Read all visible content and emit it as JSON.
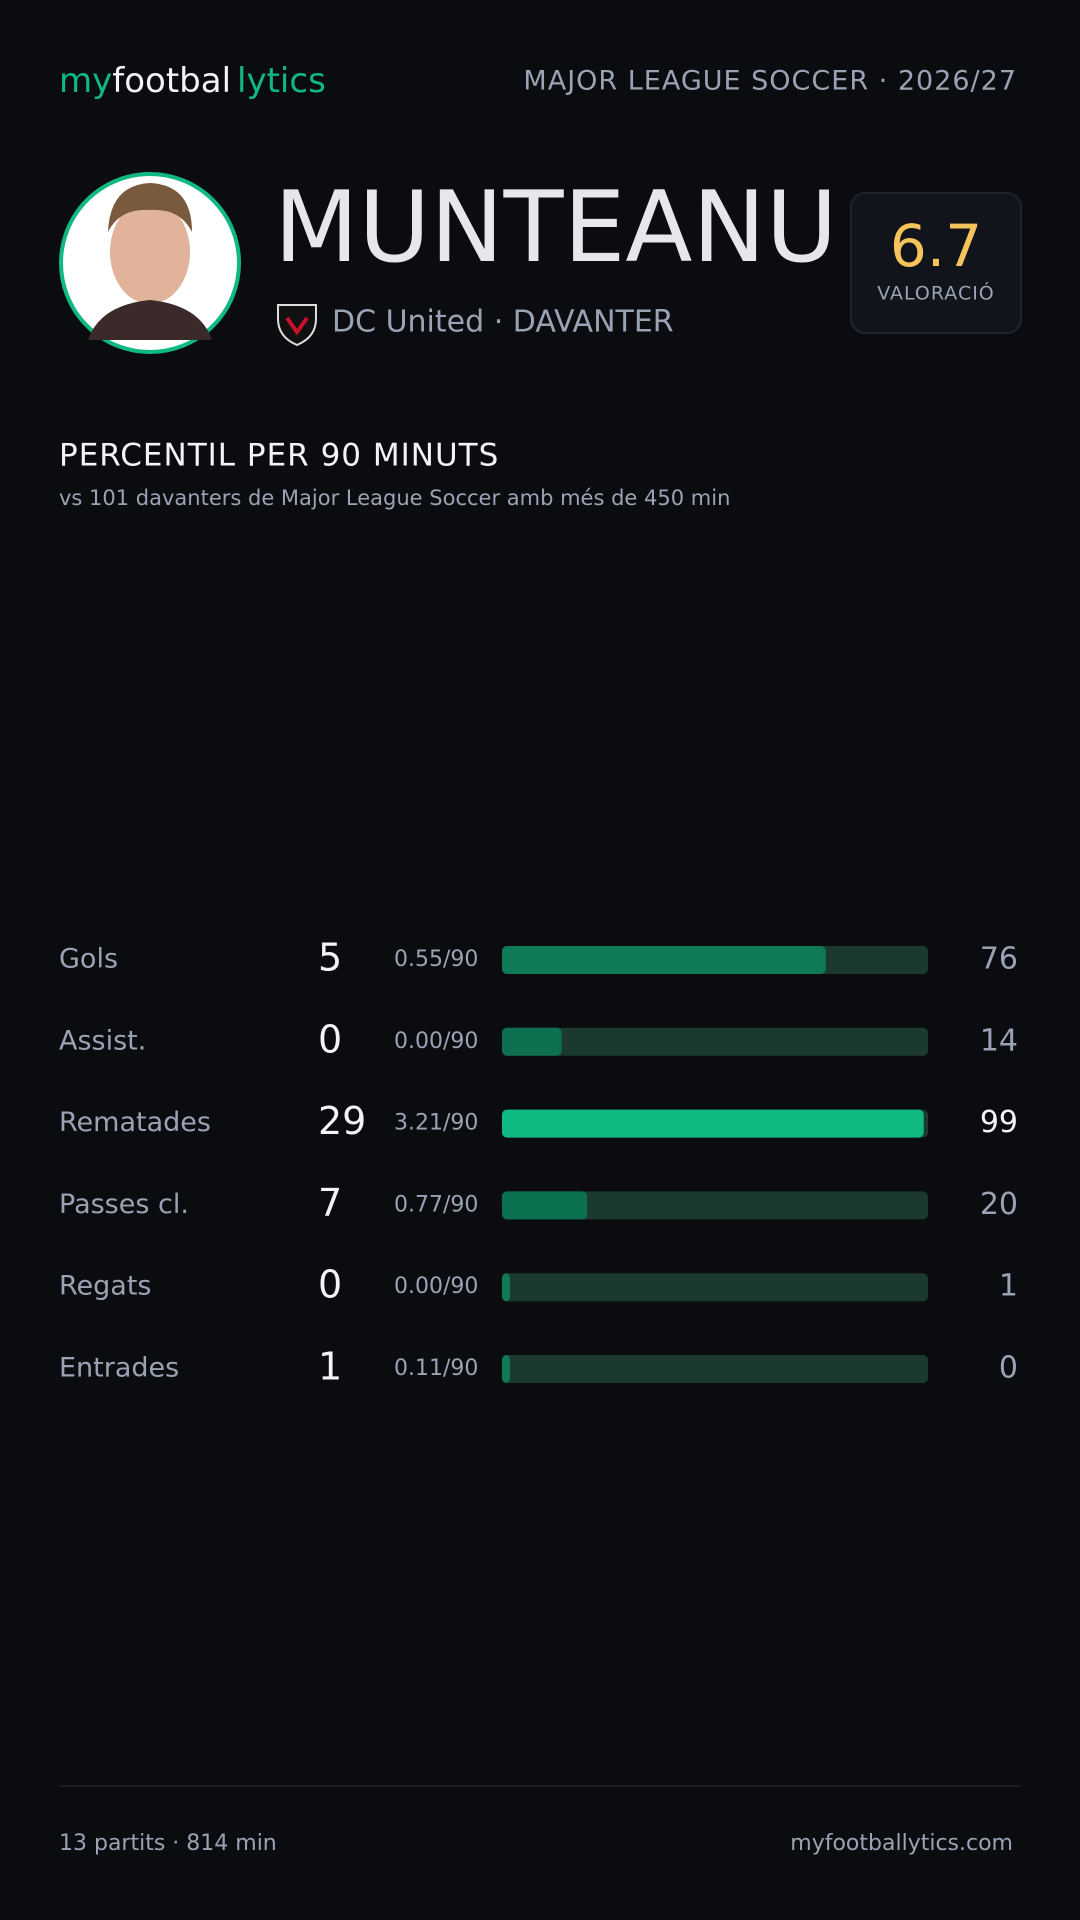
{
  "header": {
    "logo": [
      "my",
      "footbal",
      "lytics"
    ],
    "competition": "MAJOR LEAGUE SOCCER · 2026/27"
  },
  "player": {
    "name": "MUNTEANU",
    "team_position": "DC United · DAVANTER",
    "rating": "6.7",
    "rating_label": "VALORACIÓ"
  },
  "chart_data": {
    "type": "bar",
    "orientation": "horizontal",
    "title": "PERCENTIL PER 90 MINUTS",
    "subtitle": "vs 101 davanters de Major League Soccer amb més de 450 min",
    "categories": [
      "Gols",
      "Assist.",
      "Rematades",
      "Passes cl.",
      "Regats",
      "Entrades"
    ],
    "totals": [
      5,
      0,
      29,
      7,
      0,
      1
    ],
    "per90": [
      0.55,
      0.0,
      3.21,
      0.77,
      0.0,
      0.11
    ],
    "per90_labels": [
      "0.55/90",
      "0.00/90",
      "3.21/90",
      "0.77/90",
      "0.00/90",
      "0.11/90"
    ],
    "values": [
      76,
      14,
      99,
      20,
      1,
      0
    ],
    "colors": [
      "#0e7a56",
      "#0e7050",
      "#10b981",
      "#0c7150",
      "#0f7a55",
      "#0f7a55"
    ],
    "track_color": "#1b3a2d",
    "xlim": [
      0,
      100
    ]
  },
  "footer": {
    "stats": "13 partits · 814 min",
    "site": "myfootballytics.com"
  }
}
